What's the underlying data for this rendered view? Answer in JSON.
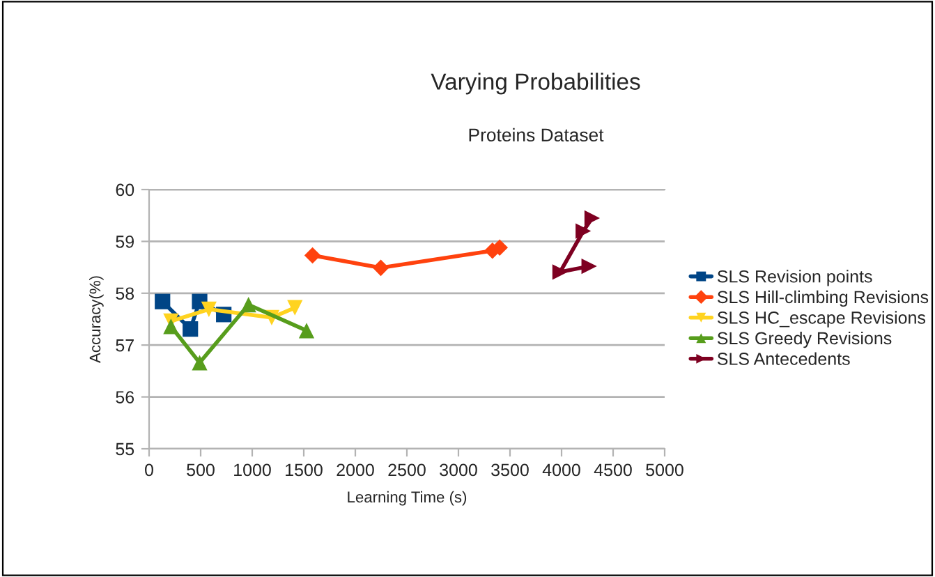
{
  "chart_data": {
    "type": "line",
    "title": "Varying Probabilities",
    "subtitle": "Proteins Dataset",
    "xlabel": "Learning Time (s)",
    "ylabel": "Accuracy(%)",
    "xlim": [
      0,
      5000
    ],
    "xticks": [
      0,
      500,
      1000,
      1500,
      2000,
      2500,
      3000,
      3500,
      4000,
      4500,
      5000
    ],
    "ylim": [
      55,
      60
    ],
    "yticks": [
      55,
      56,
      57,
      58,
      59,
      60
    ],
    "grid": "y",
    "legend": "right",
    "series": [
      {
        "name": "SLS Revision points",
        "color": "#004586",
        "marker": "square",
        "x": [
          130,
          400,
          490,
          724
        ],
        "values": [
          57.84,
          57.31,
          57.84,
          57.59
        ]
      },
      {
        "name": "SLS Hill-climbing Revisions",
        "color": "#ff420e",
        "marker": "diamond",
        "x": [
          1585,
          2247,
          3330,
          3400
        ],
        "values": [
          58.73,
          58.49,
          58.82,
          58.88
        ]
      },
      {
        "name": "SLS HC_escape Revisions",
        "color": "#ffd320",
        "marker": "triangle_down",
        "x": [
          212,
          580,
          1189,
          1414
        ],
        "values": [
          57.46,
          57.69,
          57.53,
          57.72
        ]
      },
      {
        "name": "SLS Greedy Revisions",
        "color": "#579d1c",
        "marker": "triangle",
        "x": [
          212,
          490,
          964,
          1527
        ],
        "values": [
          57.36,
          56.66,
          57.78,
          57.28
        ]
      },
      {
        "name": "SLS Antecedents",
        "color": "#7e0021",
        "marker": "triangle_right",
        "x": [
          4297,
          4211,
          3986,
          4268
        ],
        "values": [
          59.45,
          59.2,
          58.41,
          58.52
        ]
      }
    ]
  }
}
